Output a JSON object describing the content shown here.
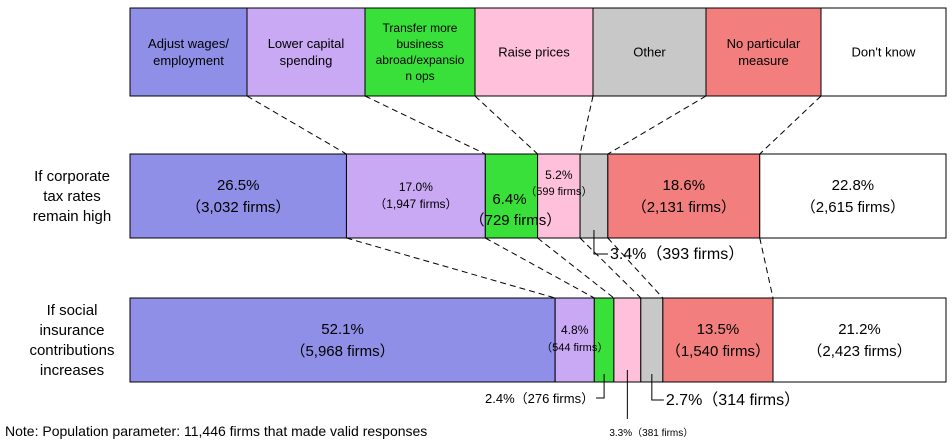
{
  "chart_data": {
    "type": "bar",
    "categories": [
      "Adjust wages/ employment",
      "Lower capital spending",
      "Transfer more business abroad/expansion ops",
      "Raise prices",
      "Other",
      "No particular measure",
      "Don't know"
    ],
    "category_lines": [
      [
        "Adjust wages/",
        "employment"
      ],
      [
        "Lower capital",
        "spending"
      ],
      [
        "Transfer more",
        "business",
        "abroad/expansio",
        "n ops"
      ],
      [
        "Raise prices"
      ],
      [
        "Other"
      ],
      [
        "No particular",
        "measure"
      ],
      [
        "Don't know"
      ]
    ],
    "colors": [
      "#8f8fe8",
      "#c9a8f4",
      "#39e039",
      "#ffc0dc",
      "#c8c8c8",
      "#f27e7e",
      "#ffffff"
    ],
    "series": [
      {
        "label_lines": [
          "If corporate",
          "tax rates",
          "remain high"
        ],
        "values": [
          26.5,
          17.0,
          6.4,
          5.2,
          3.4,
          18.6,
          22.8
        ],
        "percent_labels": [
          "26.5%",
          "17.0%",
          "6.4%",
          "5.2%",
          "3.4%",
          "18.6%",
          "22.8%"
        ],
        "firm_labels": [
          "（3,032 firms）",
          "（1,947 firms）",
          "（729 firms）",
          "（599 firms）",
          "（393 firms）",
          "（2,131 firms）",
          "（2,615 firms）"
        ],
        "callout_text": "3.4%（393 firms）"
      },
      {
        "label_lines": [
          "If social",
          "insurance",
          "contributions",
          "increases"
        ],
        "values": [
          52.1,
          4.8,
          2.4,
          3.3,
          2.7,
          13.5,
          21.2
        ],
        "percent_labels": [
          "52.1%",
          "4.8%",
          "2.4%",
          "3.3%",
          "2.7%",
          "13.5%",
          "21.2%"
        ],
        "firm_labels": [
          "（5,968 firms）",
          "（544 firms）",
          "（276 firms）",
          "（381 firms）",
          "（314 firms）",
          "（1,540 firms）",
          "（2,423 firms）"
        ],
        "callouts": [
          "2.4%（276 firms）",
          "3.3%（381 firms）",
          "2.7%（314 firms）"
        ]
      }
    ]
  },
  "note": "Note: Population parameter: 11,446 firms that made valid responses"
}
